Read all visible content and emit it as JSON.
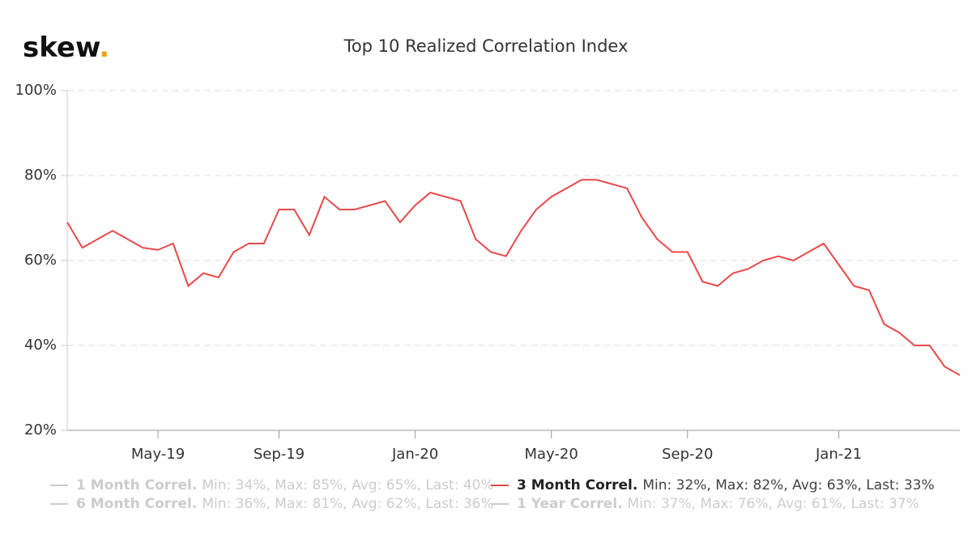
{
  "brand": {
    "name": "skew",
    "dot": "."
  },
  "chart_data": {
    "type": "line",
    "title": "Top 10 Realized Correlation Index",
    "categories": [
      null,
      null,
      null,
      null,
      null,
      null,
      "May-19",
      null,
      null,
      null,
      null,
      null,
      null,
      null,
      "Sep-19",
      null,
      null,
      null,
      null,
      null,
      null,
      null,
      null,
      "Jan-20",
      null,
      null,
      null,
      null,
      null,
      null,
      null,
      null,
      "May-20",
      null,
      null,
      null,
      null,
      null,
      null,
      null,
      null,
      "Sep-20",
      null,
      null,
      null,
      null,
      null,
      null,
      null,
      null,
      null,
      "Jan-21",
      null,
      null,
      null,
      null,
      null,
      null,
      null,
      null
    ],
    "series": [
      {
        "name": "3 Month Correl.",
        "stats": "Min: 32%, Max: 82%, Avg: 63%, Last: 33%",
        "color": "#e8494b",
        "values": [
          69,
          63,
          65,
          67,
          65,
          63,
          62.5,
          64,
          54,
          57,
          56,
          62,
          64,
          64,
          72,
          72,
          66,
          75,
          72,
          72,
          73,
          74,
          69,
          73,
          76,
          75,
          74,
          65,
          62,
          61,
          67,
          72,
          75,
          77,
          79,
          79,
          78,
          77,
          70,
          65,
          62,
          62,
          55,
          54,
          57,
          58,
          60,
          61,
          60,
          62,
          64,
          59,
          54,
          53,
          45,
          43,
          40,
          40,
          35,
          33
        ]
      }
    ],
    "hidden_series": [
      {
        "name": "1 Month Correl.",
        "stats": "Min: 34%, Max: 85%, Avg: 65%, Last: 40%"
      },
      {
        "name": "6 Month Correl.",
        "stats": "Min: 36%, Max: 81%, Avg: 62%, Last: 36%"
      },
      {
        "name": "1 Year Correl.",
        "stats": "Min: 37%, Max: 76%, Avg: 61%, Last: 37%"
      }
    ],
    "hidden_color": "#cccccc",
    "ylim": [
      20,
      100
    ],
    "yticks": [
      {
        "value": 20,
        "label": "20%"
      },
      {
        "value": 40,
        "label": "40%"
      },
      {
        "value": 60,
        "label": "60%"
      },
      {
        "value": 80,
        "label": "80%"
      },
      {
        "value": 100,
        "label": "100%"
      }
    ],
    "grid": true
  }
}
